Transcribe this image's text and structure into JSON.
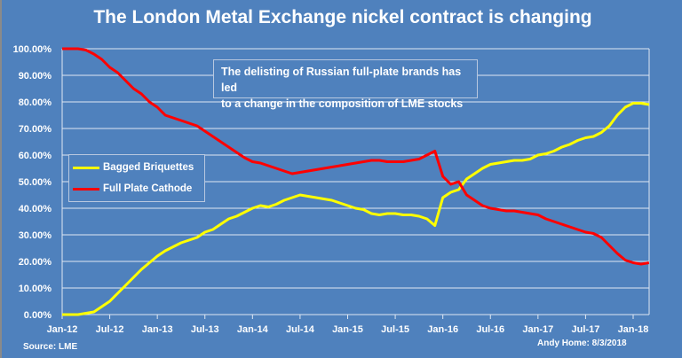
{
  "chart_data": {
    "type": "line",
    "title": "The London Metal Exchange nickel contract is changing",
    "annotation": "The delisting of Russian full-plate brands has led to a change in the composition of LME stocks",
    "annotation_lines": [
      "The delisting of Russian full-plate brands has led",
      "to a change in the composition of LME stocks"
    ],
    "xlabel": "",
    "ylabel": "",
    "x_ticks": [
      "Jan-12",
      "Jul-12",
      "Jan-13",
      "Jul-13",
      "Jan-14",
      "Jul-14",
      "Jan-15",
      "Jul-15",
      "Jan-16",
      "Jul-16",
      "Jan-17",
      "Jul-17",
      "Jan-18"
    ],
    "y_ticks": [
      "0.00%",
      "10.00%",
      "20.00%",
      "30.00%",
      "40.00%",
      "50.00%",
      "60.00%",
      "70.00%",
      "80.00%",
      "90.00%",
      "100.00%"
    ],
    "ylim": [
      0,
      100
    ],
    "xlim": [
      "2012-01",
      "2018-03"
    ],
    "grid": "horizontal",
    "legend_position": "left-middle",
    "x": [
      "2012-01",
      "2012-02",
      "2012-03",
      "2012-04",
      "2012-05",
      "2012-06",
      "2012-07",
      "2012-08",
      "2012-09",
      "2012-10",
      "2012-11",
      "2012-12",
      "2013-01",
      "2013-02",
      "2013-03",
      "2013-04",
      "2013-05",
      "2013-06",
      "2013-07",
      "2013-08",
      "2013-09",
      "2013-10",
      "2013-11",
      "2013-12",
      "2014-01",
      "2014-02",
      "2014-03",
      "2014-04",
      "2014-05",
      "2014-06",
      "2014-07",
      "2014-08",
      "2014-09",
      "2014-10",
      "2014-11",
      "2014-12",
      "2015-01",
      "2015-02",
      "2015-03",
      "2015-04",
      "2015-05",
      "2015-06",
      "2015-07",
      "2015-08",
      "2015-09",
      "2015-10",
      "2015-11",
      "2015-12",
      "2016-01",
      "2016-02",
      "2016-03",
      "2016-04",
      "2016-05",
      "2016-06",
      "2016-07",
      "2016-08",
      "2016-09",
      "2016-10",
      "2016-11",
      "2016-12",
      "2017-01",
      "2017-02",
      "2017-03",
      "2017-04",
      "2017-05",
      "2017-06",
      "2017-07",
      "2017-08",
      "2017-09",
      "2017-10",
      "2017-11",
      "2017-12",
      "2018-01",
      "2018-02",
      "2018-03"
    ],
    "series": [
      {
        "name": "Bagged Briquettes",
        "color": "#ffff00",
        "values": [
          0,
          0,
          0,
          0.5,
          1,
          3,
          5,
          8,
          11,
          14,
          17,
          19.5,
          22,
          24,
          25.5,
          27,
          28,
          29,
          31,
          32,
          34,
          36,
          37,
          38.5,
          40,
          41,
          40.5,
          41.5,
          43,
          44,
          45,
          44.5,
          44,
          43.5,
          43,
          42,
          41,
          40,
          39.5,
          38,
          37.5,
          38,
          38,
          37.5,
          37.5,
          37,
          36,
          33.5,
          44,
          46,
          47,
          51,
          53,
          55,
          56.5,
          57,
          57.5,
          58,
          58,
          58.5,
          60,
          60.5,
          61.5,
          63,
          64,
          65.5,
          66.5,
          67,
          68.5,
          71,
          75,
          78,
          79.5,
          79.5,
          79
        ]
      },
      {
        "name": "Full Plate Cathode",
        "color": "#ff0000",
        "values": [
          100,
          100,
          100,
          99.5,
          98,
          96,
          93,
          91,
          88,
          85,
          83,
          80,
          78,
          75,
          74,
          73,
          72,
          71,
          69,
          67,
          65,
          63,
          61,
          59,
          57.5,
          57,
          56,
          55,
          54,
          53,
          53.5,
          54,
          54.5,
          55,
          55.5,
          56,
          56.5,
          57,
          57.5,
          58,
          58,
          57.5,
          57.5,
          57.5,
          58,
          58.5,
          60,
          61.5,
          52,
          49,
          50,
          45,
          43,
          41,
          40,
          39.5,
          39,
          39,
          38.5,
          38,
          37.5,
          36,
          35,
          34,
          33,
          32,
          31,
          30.5,
          29,
          26,
          23,
          20.5,
          19.5,
          19,
          19.5
        ]
      }
    ],
    "source": "Source: LME",
    "credit": "Andy Home: 8/3/2018"
  }
}
